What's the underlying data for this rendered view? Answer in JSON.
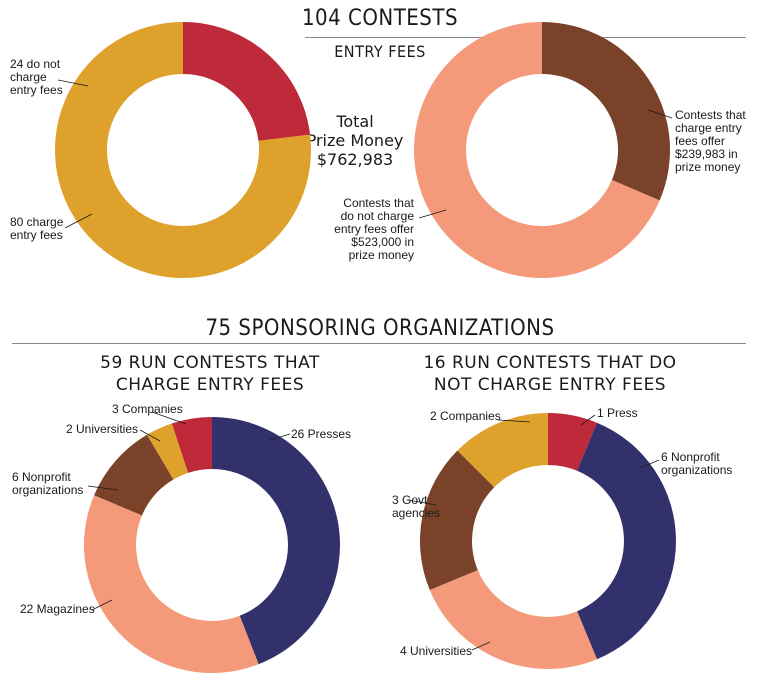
{
  "top": {
    "title": "104 CONTESTS",
    "subtitle": "ENTRY FEES",
    "center_text": [
      "Total",
      "Prize Money",
      "$762,983"
    ]
  },
  "bottom": {
    "title": "75 SPONSORING ORGANIZATIONS",
    "left_title": [
      "59 RUN CONTESTS THAT",
      "CHARGE ENTRY FEES"
    ],
    "right_title": [
      "16 RUN CONTESTS THAT DO",
      "NOT CHARGE ENTRY FEES"
    ]
  },
  "colors": {
    "red": "#bf2a3a",
    "gold": "#dea22c",
    "brown": "#7a4228",
    "salmon": "#f4997a",
    "navy": "#33316b"
  },
  "chart_data": [
    {
      "type": "pie",
      "id": "contests-entry-fees",
      "series": [
        {
          "value": 24,
          "label": [
            "24 do not",
            "charge",
            "entry fees"
          ],
          "color": "#bf2a3a"
        },
        {
          "value": 80,
          "label": [
            "80 charge",
            "entry fees"
          ],
          "color": "#dea22c"
        }
      ]
    },
    {
      "type": "pie",
      "id": "prize-money",
      "series": [
        {
          "value": 239983,
          "label": [
            "Contests that",
            "charge entry",
            "fees offer",
            "$239,983 in",
            "prize money"
          ],
          "color": "#7a4228"
        },
        {
          "value": 523000,
          "label": [
            "Contests that",
            "do not charge",
            "entry fees offer",
            "$523,000 in",
            "prize money"
          ],
          "color": "#f4997a"
        }
      ]
    },
    {
      "type": "pie",
      "id": "orgs-charge",
      "series": [
        {
          "value": 26,
          "label": [
            "26 Presses"
          ],
          "color": "#33316b"
        },
        {
          "value": 22,
          "label": [
            "22 Magazines"
          ],
          "color": "#f4997a"
        },
        {
          "value": 6,
          "label": [
            "6 Nonprofit",
            "organizations"
          ],
          "color": "#7a4228"
        },
        {
          "value": 2,
          "label": [
            "2 Universities"
          ],
          "color": "#dea22c"
        },
        {
          "value": 3,
          "label": [
            "3 Companies"
          ],
          "color": "#bf2a3a"
        }
      ]
    },
    {
      "type": "pie",
      "id": "orgs-no-charge",
      "series": [
        {
          "value": 1,
          "label": [
            "1 Press"
          ],
          "color": "#bf2a3a"
        },
        {
          "value": 6,
          "label": [
            "6 Nonprofit",
            "organizations"
          ],
          "color": "#33316b"
        },
        {
          "value": 4,
          "label": [
            "4 Universities"
          ],
          "color": "#f4997a"
        },
        {
          "value": 3,
          "label": [
            "3 Govt",
            "agencies"
          ],
          "color": "#7a4228"
        },
        {
          "value": 2,
          "label": [
            "2 Companies"
          ],
          "color": "#dea22c"
        }
      ]
    }
  ]
}
